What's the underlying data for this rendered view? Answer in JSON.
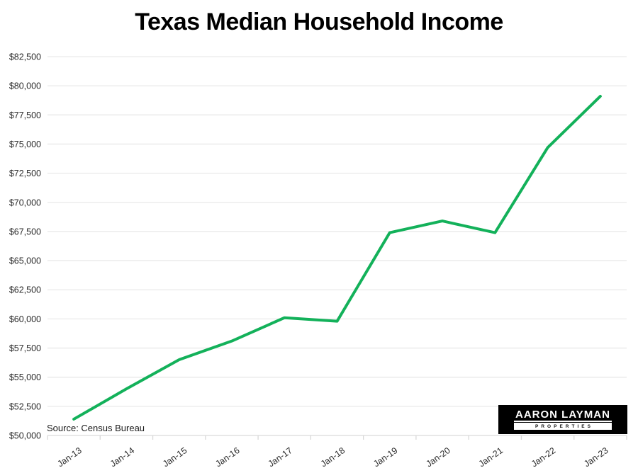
{
  "header": {
    "title": "Texas Median Household Income"
  },
  "footer": {
    "source_note": "Source: Census Bureau"
  },
  "logo": {
    "name": "AARON LAYMAN",
    "tagline": "PROPERTIES"
  },
  "colors": {
    "line": "#13b15a",
    "grid": "#e9e9e9",
    "axis": "#d9d9d9",
    "label_text": "#2b2b2b",
    "title_text": "#000000",
    "logo_bg": "#000000",
    "logo_fg": "#ffffff",
    "background": "#ffffff"
  },
  "chart_data": {
    "type": "line",
    "title": "Texas Median Household Income",
    "categories": [
      "Jan-13",
      "Jan-14",
      "Jan-15",
      "Jan-16",
      "Jan-17",
      "Jan-18",
      "Jan-19",
      "Jan-20",
      "Jan-21",
      "Jan-22",
      "Jan-23"
    ],
    "series": [
      {
        "name": "Texas median household income",
        "color": "#13b15a",
        "values": [
          51400,
          54000,
          56500,
          58100,
          60100,
          59800,
          67400,
          68400,
          67400,
          74700,
          79100
        ]
      }
    ],
    "ylim": [
      50000,
      82500
    ],
    "ytick_step": 2500,
    "ytick_labels": [
      "$50,000",
      "$52,500",
      "$55,000",
      "$57,500",
      "$60,000",
      "$62,500",
      "$65,000",
      "$67,500",
      "$70,000",
      "$72,500",
      "$75,000",
      "$77,500",
      "$80,000",
      "$82,500"
    ],
    "xlabel": "",
    "ylabel": "",
    "grid": "horizontal",
    "legend": "none",
    "annotations": []
  }
}
